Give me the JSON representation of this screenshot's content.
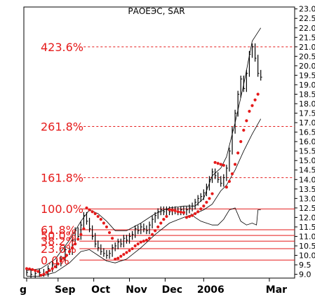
{
  "chart_data": {
    "type": "line",
    "title": "РАОЕЭС, SAR",
    "ylim": [
      8.8,
      23.1
    ],
    "y_ticks": [
      "9.0",
      "9.5",
      "10.0",
      "10.5",
      "11.0",
      "11.5",
      "12.0",
      "12.5",
      "13.0",
      "13.5",
      "14.0",
      "14.5",
      "15.0",
      "15.5",
      "16.0",
      "16.5",
      "17.0",
      "17.5",
      "18.0",
      "18.5",
      "19.0",
      "19.5",
      "20.0",
      "20.5",
      "21.0",
      "21.5",
      "22.0",
      "22.5",
      "23.0"
    ],
    "x_ticks": [
      {
        "label": "g",
        "x": 0
      },
      {
        "label": "Sep",
        "x": 22
      },
      {
        "label": "Oct",
        "x": 47
      },
      {
        "label": "Nov",
        "x": 72
      },
      {
        "label": "Dec",
        "x": 97
      },
      {
        "label": "2006",
        "x": 124
      },
      {
        "label": "Mar",
        "x": 170
      }
    ],
    "x_range": [
      0,
      172
    ],
    "grid": false,
    "colors": {
      "fib": "#e51a1a",
      "sar": "#e51a1a",
      "price": "#000000",
      "envelope": "#000000"
    },
    "fib_levels": [
      {
        "label": "423.6%",
        "value": 21.0,
        "style": "dashed",
        "x_start": 37
      },
      {
        "label": "261.8%",
        "value": 16.8,
        "style": "dashed",
        "x_start": 37
      },
      {
        "label": "161.8%",
        "value": 14.1,
        "style": "dashed",
        "x_start": 37
      },
      {
        "label": "100.0%",
        "value": 12.45,
        "style": "solid",
        "x_start": 37
      },
      {
        "label": "61.8%",
        "value": 11.35,
        "style": "solid",
        "x_start": 37
      },
      {
        "label": "50.0%",
        "value": 11.05,
        "style": "solid",
        "x_start": 37
      },
      {
        "label": "38.2%",
        "value": 10.75,
        "style": "solid",
        "x_start": 37
      },
      {
        "label": "23.6%",
        "value": 10.35,
        "style": "solid",
        "x_start": 37
      },
      {
        "label": "0.0%",
        "value": 9.75,
        "style": "solid",
        "x_start": 37
      }
    ],
    "price": [
      {
        "x": 0,
        "y": 9.1
      },
      {
        "x": 3,
        "y": 9.0
      },
      {
        "x": 6,
        "y": 9.05
      },
      {
        "x": 9,
        "y": 9.1
      },
      {
        "x": 12,
        "y": 9.05
      },
      {
        "x": 15,
        "y": 9.3
      },
      {
        "x": 18,
        "y": 9.5
      },
      {
        "x": 21,
        "y": 9.6
      },
      {
        "x": 24,
        "y": 9.8
      },
      {
        "x": 27,
        "y": 10.3
      },
      {
        "x": 30,
        "y": 10.2
      },
      {
        "x": 32,
        "y": 10.8
      },
      {
        "x": 34,
        "y": 11.3
      },
      {
        "x": 36,
        "y": 11.0
      },
      {
        "x": 38,
        "y": 11.6
      },
      {
        "x": 40,
        "y": 12.1
      },
      {
        "x": 42,
        "y": 11.8
      },
      {
        "x": 44,
        "y": 11.4
      },
      {
        "x": 46,
        "y": 11.0
      },
      {
        "x": 48,
        "y": 10.6
      },
      {
        "x": 50,
        "y": 10.4
      },
      {
        "x": 52,
        "y": 10.2
      },
      {
        "x": 54,
        "y": 10.1
      },
      {
        "x": 56,
        "y": 10.0
      },
      {
        "x": 58,
        "y": 10.1
      },
      {
        "x": 60,
        "y": 10.4
      },
      {
        "x": 62,
        "y": 10.5
      },
      {
        "x": 64,
        "y": 10.7
      },
      {
        "x": 66,
        "y": 10.6
      },
      {
        "x": 68,
        "y": 10.9
      },
      {
        "x": 70,
        "y": 10.8
      },
      {
        "x": 72,
        "y": 11.0
      },
      {
        "x": 74,
        "y": 11.1
      },
      {
        "x": 76,
        "y": 11.4
      },
      {
        "x": 78,
        "y": 11.3
      },
      {
        "x": 80,
        "y": 11.5
      },
      {
        "x": 82,
        "y": 11.4
      },
      {
        "x": 84,
        "y": 11.3
      },
      {
        "x": 86,
        "y": 11.6
      },
      {
        "x": 88,
        "y": 11.9
      },
      {
        "x": 90,
        "y": 12.1
      },
      {
        "x": 92,
        "y": 12.3
      },
      {
        "x": 94,
        "y": 12.4
      },
      {
        "x": 96,
        "y": 12.3
      },
      {
        "x": 98,
        "y": 12.4
      },
      {
        "x": 100,
        "y": 12.3
      },
      {
        "x": 102,
        "y": 12.4
      },
      {
        "x": 104,
        "y": 12.35
      },
      {
        "x": 106,
        "y": 12.3
      },
      {
        "x": 108,
        "y": 12.4
      },
      {
        "x": 110,
        "y": 12.3
      },
      {
        "x": 112,
        "y": 12.4
      },
      {
        "x": 114,
        "y": 12.5
      },
      {
        "x": 116,
        "y": 12.6
      },
      {
        "x": 118,
        "y": 12.8
      },
      {
        "x": 120,
        "y": 13.0
      },
      {
        "x": 122,
        "y": 13.1
      },
      {
        "x": 124,
        "y": 13.3
      },
      {
        "x": 126,
        "y": 13.6
      },
      {
        "x": 128,
        "y": 14.0
      },
      {
        "x": 130,
        "y": 14.4
      },
      {
        "x": 132,
        "y": 14.2
      },
      {
        "x": 134,
        "y": 14.0
      },
      {
        "x": 136,
        "y": 13.8
      },
      {
        "x": 138,
        "y": 14.1
      },
      {
        "x": 140,
        "y": 14.6
      },
      {
        "x": 142,
        "y": 15.5
      },
      {
        "x": 144,
        "y": 16.6
      },
      {
        "x": 146,
        "y": 17.5
      },
      {
        "x": 148,
        "y": 18.5
      },
      {
        "x": 150,
        "y": 19.3
      },
      {
        "x": 152,
        "y": 18.8
      },
      {
        "x": 154,
        "y": 19.6
      },
      {
        "x": 156,
        "y": 20.6
      },
      {
        "x": 158,
        "y": 21.0
      },
      {
        "x": 160,
        "y": 20.4
      },
      {
        "x": 162,
        "y": 19.6
      },
      {
        "x": 164,
        "y": 19.4
      }
    ],
    "sar": [
      {
        "x": 0,
        "y": 9.3
      },
      {
        "x": 2,
        "y": 9.28
      },
      {
        "x": 4,
        "y": 9.25
      },
      {
        "x": 6,
        "y": 9.2
      },
      {
        "x": 8,
        "y": 9.15
      },
      {
        "x": 10,
        "y": 8.95
      },
      {
        "x": 12,
        "y": 9.0
      },
      {
        "x": 14,
        "y": 9.1
      },
      {
        "x": 16,
        "y": 9.2
      },
      {
        "x": 18,
        "y": 9.3
      },
      {
        "x": 20,
        "y": 9.4
      },
      {
        "x": 22,
        "y": 9.55
      },
      {
        "x": 24,
        "y": 9.7
      },
      {
        "x": 26,
        "y": 9.85
      },
      {
        "x": 28,
        "y": 10.0
      },
      {
        "x": 30,
        "y": 10.2
      },
      {
        "x": 32,
        "y": 10.4
      },
      {
        "x": 34,
        "y": 10.6
      },
      {
        "x": 36,
        "y": 10.85
      },
      {
        "x": 38,
        "y": 11.1
      },
      {
        "x": 40,
        "y": 11.4
      },
      {
        "x": 42,
        "y": 12.5
      },
      {
        "x": 44,
        "y": 12.4
      },
      {
        "x": 46,
        "y": 12.3
      },
      {
        "x": 48,
        "y": 12.2
      },
      {
        "x": 50,
        "y": 12.05
      },
      {
        "x": 52,
        "y": 11.9
      },
      {
        "x": 54,
        "y": 11.7
      },
      {
        "x": 56,
        "y": 11.5
      },
      {
        "x": 58,
        "y": 11.2
      },
      {
        "x": 60,
        "y": 10.9
      },
      {
        "x": 62,
        "y": 9.8
      },
      {
        "x": 64,
        "y": 9.85
      },
      {
        "x": 66,
        "y": 9.95
      },
      {
        "x": 68,
        "y": 10.05
      },
      {
        "x": 70,
        "y": 10.15
      },
      {
        "x": 72,
        "y": 10.25
      },
      {
        "x": 74,
        "y": 10.35
      },
      {
        "x": 76,
        "y": 10.5
      },
      {
        "x": 78,
        "y": 10.6
      },
      {
        "x": 80,
        "y": 10.7
      },
      {
        "x": 82,
        "y": 10.75
      },
      {
        "x": 84,
        "y": 10.8
      },
      {
        "x": 86,
        "y": 10.9
      },
      {
        "x": 88,
        "y": 11.1
      },
      {
        "x": 90,
        "y": 11.3
      },
      {
        "x": 92,
        "y": 11.5
      },
      {
        "x": 94,
        "y": 11.7
      },
      {
        "x": 96,
        "y": 11.9
      },
      {
        "x": 98,
        "y": 12.05
      },
      {
        "x": 100,
        "y": 12.4
      },
      {
        "x": 102,
        "y": 12.38
      },
      {
        "x": 104,
        "y": 12.35
      },
      {
        "x": 106,
        "y": 12.3
      },
      {
        "x": 108,
        "y": 12.28
      },
      {
        "x": 110,
        "y": 12.25
      },
      {
        "x": 112,
        "y": 12.0
      },
      {
        "x": 114,
        "y": 12.05
      },
      {
        "x": 116,
        "y": 12.1
      },
      {
        "x": 118,
        "y": 12.2
      },
      {
        "x": 120,
        "y": 12.3
      },
      {
        "x": 122,
        "y": 12.45
      },
      {
        "x": 124,
        "y": 12.6
      },
      {
        "x": 126,
        "y": 12.8
      },
      {
        "x": 128,
        "y": 13.0
      },
      {
        "x": 130,
        "y": 13.25
      },
      {
        "x": 132,
        "y": 14.9
      },
      {
        "x": 134,
        "y": 14.85
      },
      {
        "x": 136,
        "y": 14.8
      },
      {
        "x": 138,
        "y": 14.75
      },
      {
        "x": 140,
        "y": 13.6
      },
      {
        "x": 142,
        "y": 13.9
      },
      {
        "x": 144,
        "y": 14.3
      },
      {
        "x": 146,
        "y": 14.8
      },
      {
        "x": 148,
        "y": 15.4
      },
      {
        "x": 150,
        "y": 16.0
      },
      {
        "x": 152,
        "y": 16.6
      },
      {
        "x": 154,
        "y": 17.1
      },
      {
        "x": 156,
        "y": 17.6
      },
      {
        "x": 158,
        "y": 17.9
      },
      {
        "x": 160,
        "y": 18.2
      },
      {
        "x": 162,
        "y": 18.5
      }
    ],
    "envelope_upper": [
      {
        "x": 0,
        "y": 9.2
      },
      {
        "x": 10,
        "y": 9.3
      },
      {
        "x": 20,
        "y": 9.8
      },
      {
        "x": 30,
        "y": 10.8
      },
      {
        "x": 38,
        "y": 11.8
      },
      {
        "x": 44,
        "y": 12.4
      },
      {
        "x": 50,
        "y": 12.2
      },
      {
        "x": 56,
        "y": 11.8
      },
      {
        "x": 62,
        "y": 11.3
      },
      {
        "x": 70,
        "y": 11.3
      },
      {
        "x": 80,
        "y": 11.7
      },
      {
        "x": 90,
        "y": 12.2
      },
      {
        "x": 100,
        "y": 12.5
      },
      {
        "x": 110,
        "y": 12.6
      },
      {
        "x": 118,
        "y": 12.6
      },
      {
        "x": 124,
        "y": 13.0
      },
      {
        "x": 130,
        "y": 14.2
      },
      {
        "x": 136,
        "y": 14.6
      },
      {
        "x": 140,
        "y": 15.2
      },
      {
        "x": 146,
        "y": 17.0
      },
      {
        "x": 152,
        "y": 19.0
      },
      {
        "x": 158,
        "y": 21.3
      },
      {
        "x": 164,
        "y": 22.0
      }
    ],
    "envelope_lower": [
      {
        "x": 0,
        "y": 8.9
      },
      {
        "x": 10,
        "y": 8.9
      },
      {
        "x": 20,
        "y": 9.1
      },
      {
        "x": 30,
        "y": 9.6
      },
      {
        "x": 38,
        "y": 10.2
      },
      {
        "x": 44,
        "y": 10.3
      },
      {
        "x": 50,
        "y": 10.0
      },
      {
        "x": 56,
        "y": 9.7
      },
      {
        "x": 62,
        "y": 9.6
      },
      {
        "x": 70,
        "y": 9.8
      },
      {
        "x": 80,
        "y": 10.4
      },
      {
        "x": 90,
        "y": 11.1
      },
      {
        "x": 100,
        "y": 11.7
      },
      {
        "x": 110,
        "y": 12.0
      },
      {
        "x": 118,
        "y": 12.2
      },
      {
        "x": 124,
        "y": 12.4
      },
      {
        "x": 130,
        "y": 12.7
      },
      {
        "x": 136,
        "y": 13.4
      },
      {
        "x": 140,
        "y": 13.7
      },
      {
        "x": 146,
        "y": 14.5
      },
      {
        "x": 152,
        "y": 15.5
      },
      {
        "x": 158,
        "y": 16.4
      },
      {
        "x": 164,
        "y": 17.2
      }
    ],
    "bottom_band": [
      {
        "x": 115,
        "y": 12.2
      },
      {
        "x": 118,
        "y": 12.0
      },
      {
        "x": 122,
        "y": 11.8
      },
      {
        "x": 126,
        "y": 11.7
      },
      {
        "x": 130,
        "y": 11.6
      },
      {
        "x": 134,
        "y": 11.6
      },
      {
        "x": 138,
        "y": 11.9
      },
      {
        "x": 142,
        "y": 12.4
      },
      {
        "x": 146,
        "y": 12.5
      },
      {
        "x": 150,
        "y": 11.8
      },
      {
        "x": 154,
        "y": 11.6
      },
      {
        "x": 158,
        "y": 11.7
      },
      {
        "x": 161,
        "y": 11.6
      },
      {
        "x": 162,
        "y": 12.4
      },
      {
        "x": 164,
        "y": 12.4
      }
    ]
  }
}
